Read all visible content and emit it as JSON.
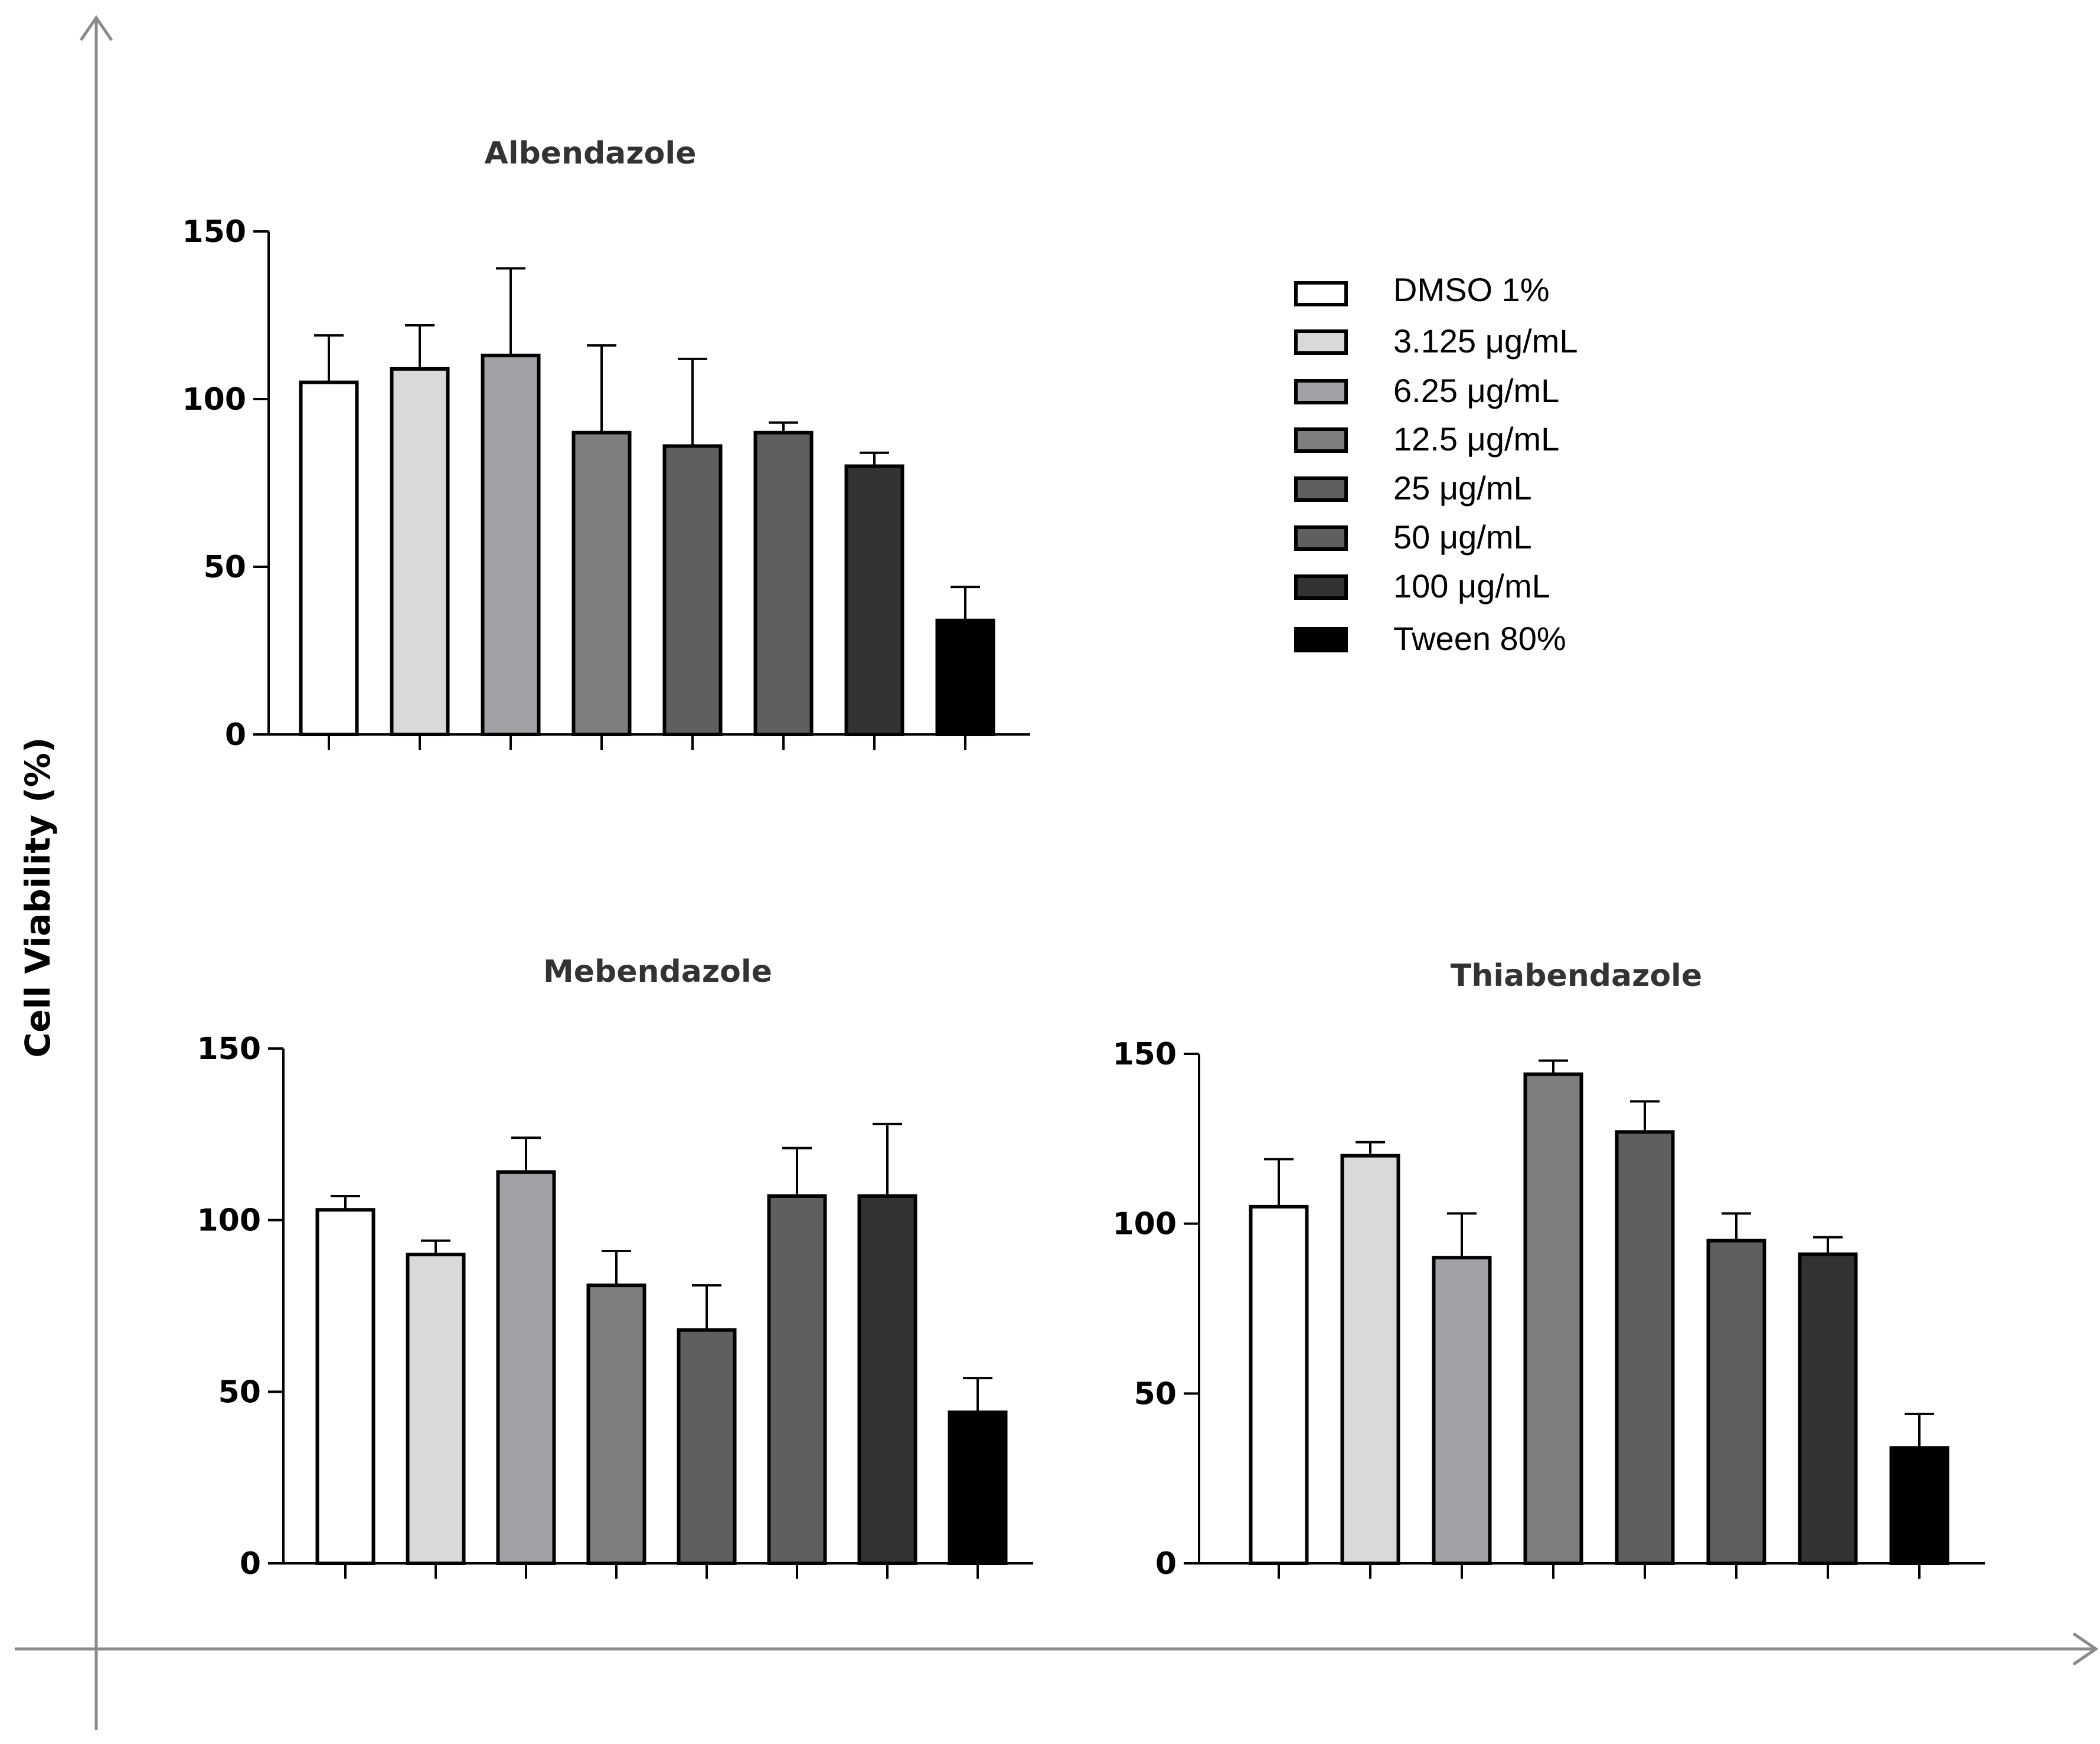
{
  "chart_data": [
    {
      "type": "bar",
      "title": "Albendazole",
      "categories": [
        "DMSO 1%",
        "3.125 μg/mL",
        "6.25 μg/mL",
        "12.5 μg/mL",
        "25 μg/mL",
        "50 μg/mL",
        "100 μg/mL",
        "Tween 80%"
      ],
      "values": [
        105,
        109,
        113,
        90,
        86,
        90,
        80,
        34
      ],
      "errors": [
        14,
        13,
        26,
        26,
        26,
        3,
        4,
        10
      ],
      "ylim": [
        0,
        150
      ],
      "yticks": [
        0,
        50,
        100,
        150
      ],
      "xlabel": "",
      "ylabel": "Cell Viability (%)"
    },
    {
      "type": "bar",
      "title": "Mebendazole",
      "categories": [
        "DMSO 1%",
        "3.125 μg/mL",
        "6.25 μg/mL",
        "12.5 μg/mL",
        "25 μg/mL",
        "50 μg/mL",
        "100 μg/mL",
        "Tween 80%"
      ],
      "values": [
        103,
        90,
        114,
        81,
        68,
        107,
        107,
        44
      ],
      "errors": [
        4,
        4,
        10,
        10,
        13,
        14,
        21,
        10
      ],
      "ylim": [
        0,
        150
      ],
      "yticks": [
        0,
        50,
        100,
        150
      ],
      "xlabel": "",
      "ylabel": "Cell Viability (%)"
    },
    {
      "type": "bar",
      "title": "Thiabendazole",
      "categories": [
        "DMSO 1%",
        "3.125 μg/mL",
        "6.25 μg/mL",
        "12.5 μg/mL",
        "25 μg/mL",
        "50 μg/mL",
        "100 μg/mL",
        "Tween 80%"
      ],
      "values": [
        105,
        120,
        90,
        144,
        127,
        95,
        91,
        34
      ],
      "errors": [
        14,
        4,
        13,
        4,
        9,
        8,
        5,
        10
      ],
      "ylim": [
        0,
        150
      ],
      "yticks": [
        0,
        50,
        100,
        150
      ],
      "xlabel": "",
      "ylabel": "Cell Viability (%)"
    }
  ],
  "figure": {
    "ylabel": "Cell Viability (%)"
  },
  "legend": {
    "position": "top-right",
    "items": [
      "DMSO 1%",
      "3.125 μg/mL",
      "6.25 μg/mL",
      "12.5 μg/mL",
      "25 μg/mL",
      "50 μg/mL",
      "100 μg/mL",
      "Tween 80%"
    ]
  },
  "colors": {
    "fills": [
      "#ffffff",
      "#d9d9d9",
      "#a2a2a6",
      "#7e7e7e",
      "#5f5f5f",
      "#5f5f5f",
      "#333333",
      "#000000"
    ],
    "stroke": "#000000",
    "frame": "#8a8a8a"
  }
}
